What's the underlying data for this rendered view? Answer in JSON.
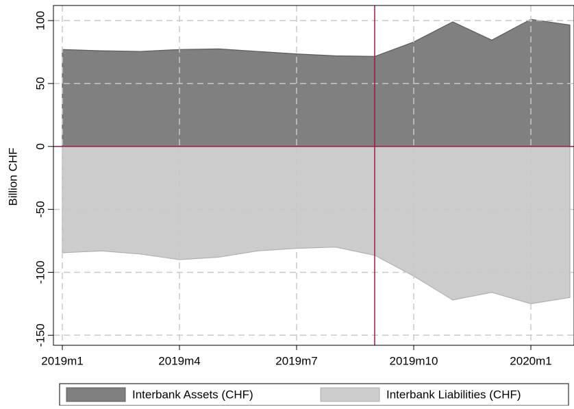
{
  "chart_data": {
    "type": "area",
    "y_label": "Billion CHF",
    "categories": [
      "2019m1",
      null,
      null,
      "2019m4",
      null,
      null,
      "2019m7",
      null,
      null,
      "2019m10",
      null,
      null,
      "2020m1",
      null
    ],
    "series": [
      {
        "name": "Interbank Assets (CHF)",
        "color": "#808080",
        "values": [
          77,
          76,
          75.5,
          77,
          77.5,
          75.5,
          73.5,
          72,
          71.5,
          83,
          99,
          84.5,
          101,
          96.5
        ]
      },
      {
        "name": "Interbank Liabilities (CHF)",
        "color": "#cccccc",
        "values": [
          -84.5,
          -83,
          -85.5,
          -90,
          -88,
          -83,
          -81,
          -80,
          -86.5,
          -103,
          -122,
          -116,
          -125,
          -120
        ]
      }
    ],
    "ylim": [
      -158,
      112
    ],
    "yticks": [
      -150,
      -100,
      -50,
      0,
      50,
      100
    ],
    "yline": 0,
    "xline": 8,
    "reference_color": "#a0174a",
    "grid": true,
    "legend": "bottom"
  }
}
